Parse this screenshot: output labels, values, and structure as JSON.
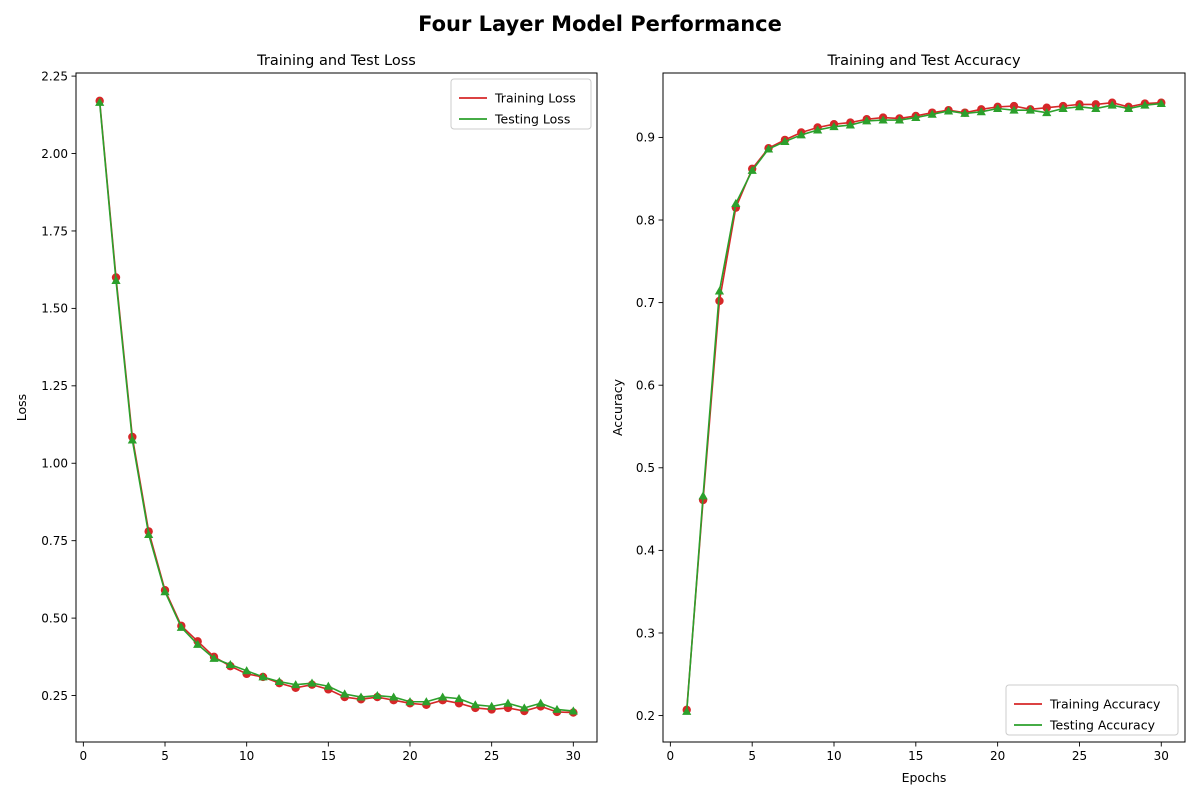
{
  "figure": {
    "title": "Four Layer Model Performance"
  },
  "chart_data": [
    {
      "type": "line",
      "title": "Training and Test Loss",
      "xlabel": "",
      "ylabel": "Loss",
      "xlim": [
        -0.45,
        31.45
      ],
      "ylim": [
        0.1,
        2.26
      ],
      "xticks": [
        0,
        5,
        10,
        15,
        20,
        25,
        30
      ],
      "yticks": [
        0.25,
        0.5,
        0.75,
        1.0,
        1.25,
        1.5,
        1.75,
        2.0,
        2.25
      ],
      "ytick_labels": [
        "0.25",
        "0.50",
        "0.75",
        "1.00",
        "1.25",
        "1.50",
        "1.75",
        "2.00",
        "2.25"
      ],
      "grid": false,
      "legend": "top-right",
      "x": [
        1,
        2,
        3,
        4,
        5,
        6,
        7,
        8,
        9,
        10,
        11,
        12,
        13,
        14,
        15,
        16,
        17,
        18,
        19,
        20,
        21,
        22,
        23,
        24,
        25,
        26,
        27,
        28,
        29,
        30
      ],
      "series": [
        {
          "name": "Training Loss",
          "color": "#d62728",
          "marker": "circle",
          "values": [
            2.17,
            1.6,
            1.085,
            0.78,
            0.59,
            0.475,
            0.425,
            0.375,
            0.345,
            0.32,
            0.31,
            0.29,
            0.275,
            0.285,
            0.27,
            0.245,
            0.238,
            0.245,
            0.235,
            0.225,
            0.22,
            0.235,
            0.225,
            0.21,
            0.205,
            0.21,
            0.2,
            0.215,
            0.197,
            0.195
          ]
        },
        {
          "name": "Testing Loss",
          "color": "#2ca02c",
          "marker": "triangle",
          "values": [
            2.165,
            1.59,
            1.075,
            0.77,
            0.585,
            0.47,
            0.415,
            0.37,
            0.35,
            0.33,
            0.31,
            0.295,
            0.285,
            0.29,
            0.28,
            0.255,
            0.245,
            0.25,
            0.245,
            0.23,
            0.23,
            0.245,
            0.24,
            0.22,
            0.215,
            0.225,
            0.21,
            0.225,
            0.205,
            0.2
          ]
        }
      ]
    },
    {
      "type": "line",
      "title": "Training and Test Accuracy",
      "xlabel": "Epochs",
      "ylabel": "Accuracy",
      "xlim": [
        -0.45,
        31.45
      ],
      "ylim": [
        0.168,
        0.978
      ],
      "xticks": [
        0,
        5,
        10,
        15,
        20,
        25,
        30
      ],
      "yticks": [
        0.2,
        0.3,
        0.4,
        0.5,
        0.6,
        0.7,
        0.8,
        0.9
      ],
      "ytick_labels": [
        "0.2",
        "0.3",
        "0.4",
        "0.5",
        "0.6",
        "0.7",
        "0.8",
        "0.9"
      ],
      "grid": false,
      "legend": "bottom-right",
      "x": [
        1,
        2,
        3,
        4,
        5,
        6,
        7,
        8,
        9,
        10,
        11,
        12,
        13,
        14,
        15,
        16,
        17,
        18,
        19,
        20,
        21,
        22,
        23,
        24,
        25,
        26,
        27,
        28,
        29,
        30
      ],
      "series": [
        {
          "name": "Training Accuracy",
          "color": "#d62728",
          "marker": "circle",
          "values": [
            0.207,
            0.461,
            0.702,
            0.815,
            0.862,
            0.887,
            0.897,
            0.906,
            0.912,
            0.916,
            0.918,
            0.922,
            0.924,
            0.923,
            0.926,
            0.93,
            0.933,
            0.93,
            0.934,
            0.937,
            0.938,
            0.934,
            0.936,
            0.938,
            0.94,
            0.94,
            0.942,
            0.937,
            0.941,
            0.942
          ]
        },
        {
          "name": "Testing Accuracy",
          "color": "#2ca02c",
          "marker": "triangle",
          "values": [
            0.205,
            0.466,
            0.714,
            0.82,
            0.86,
            0.886,
            0.895,
            0.903,
            0.909,
            0.913,
            0.915,
            0.92,
            0.921,
            0.921,
            0.924,
            0.928,
            0.932,
            0.929,
            0.931,
            0.935,
            0.933,
            0.933,
            0.93,
            0.935,
            0.937,
            0.935,
            0.939,
            0.935,
            0.939,
            0.941
          ]
        }
      ]
    }
  ]
}
